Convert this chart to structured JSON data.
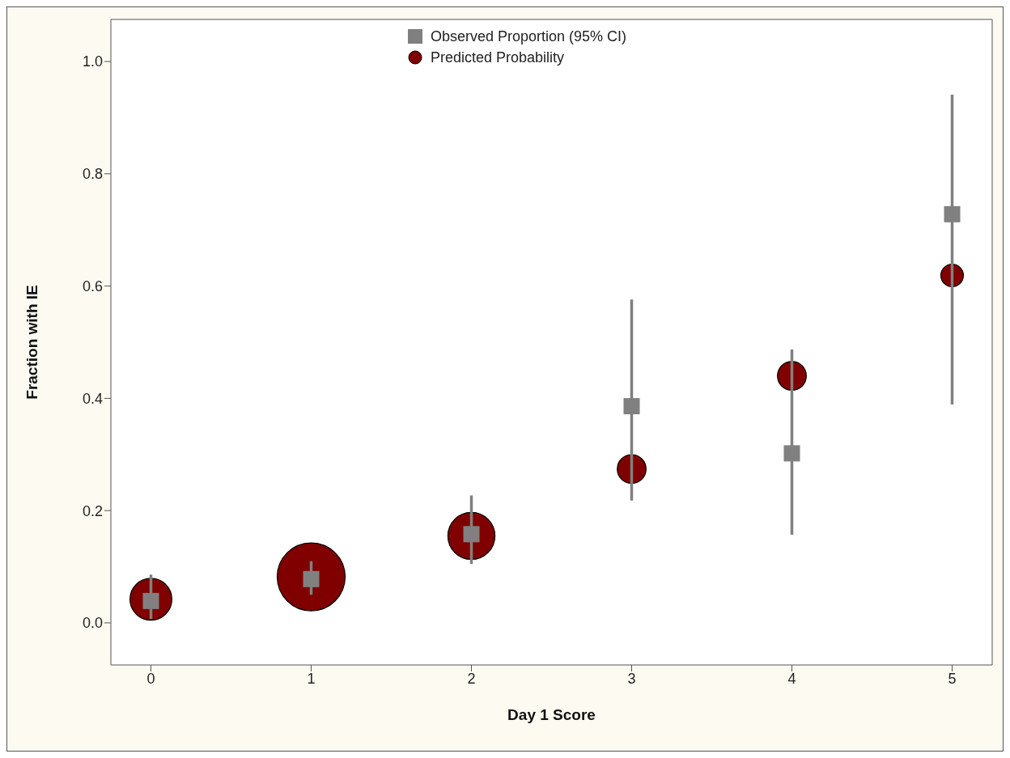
{
  "chart_data": {
    "type": "scatter",
    "xlabel": "Day 1 Score",
    "ylabel": "Fraction with IE",
    "x": [
      0,
      1,
      2,
      3,
      4,
      5
    ],
    "xlim": [
      -0.25,
      5.25
    ],
    "xticks": [
      0,
      1,
      2,
      3,
      4,
      5
    ],
    "ylim": [
      -0.075,
      1.075
    ],
    "yticks": [
      {
        "value": 0,
        "label": "0.0"
      },
      {
        "value": 0.2,
        "label": "0.2"
      },
      {
        "value": 0.4,
        "label": "0.4"
      },
      {
        "value": 0.6,
        "label": "0.6"
      },
      {
        "value": 0.8,
        "label": "0.8"
      },
      {
        "value": 1,
        "label": "1.0"
      }
    ],
    "grid": false,
    "legend": "top",
    "series": [
      {
        "name": "Observed Proportion (95% CI)",
        "color": "#808080",
        "marker": "square",
        "values": [
          0.039,
          0.078,
          0.158,
          0.386,
          0.302,
          0.728
        ],
        "errors": [
          [
            0.007,
            0.086
          ],
          [
            0.05,
            0.11
          ],
          [
            0.105,
            0.227
          ],
          [
            0.218,
            0.576
          ],
          [
            0.157,
            0.487
          ],
          [
            0.389,
            0.941
          ]
        ]
      },
      {
        "name": "Predicted Probability",
        "type": "bubble",
        "color": "#800000",
        "marker": "circle",
        "values": [
          0.042,
          0.082,
          0.155,
          0.274,
          0.44,
          0.619
        ],
        "sizes": [
          0.38,
          1,
          0.48,
          0.18,
          0.18,
          0.11
        ]
      }
    ]
  }
}
